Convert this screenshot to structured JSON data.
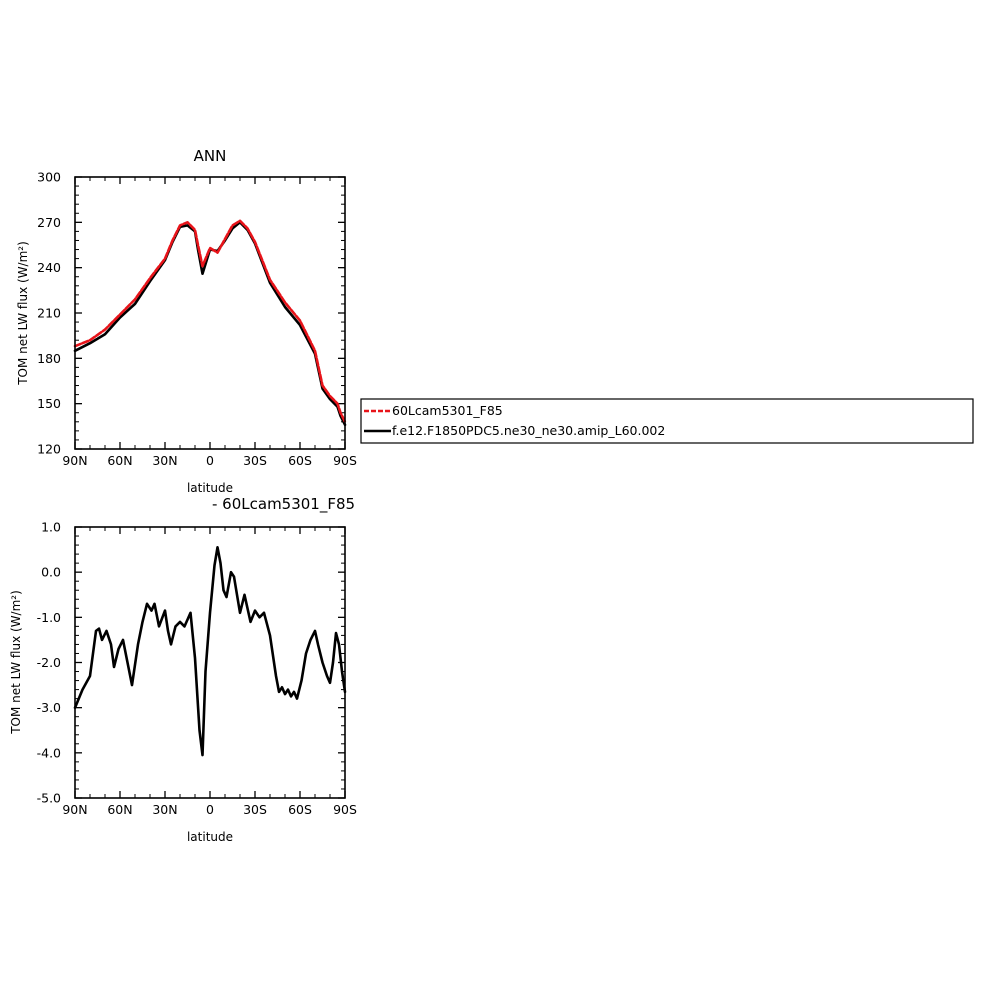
{
  "chart_data": [
    {
      "type": "line",
      "title": "ANN",
      "xlabel": "latitude",
      "ylabel": "TOM net LW flux (W/m²)",
      "xlim": [
        -90,
        90
      ],
      "ylim": [
        120,
        300
      ],
      "x_axis_direction": "90N on left, 90S on right",
      "xticks": [
        {
          "value": -90,
          "label": "90N"
        },
        {
          "value": -60,
          "label": "60N"
        },
        {
          "value": -30,
          "label": "30N"
        },
        {
          "value": 0,
          "label": "0"
        },
        {
          "value": 30,
          "label": "30S"
        },
        {
          "value": 60,
          "label": "60S"
        },
        {
          "value": 90,
          "label": "90S"
        }
      ],
      "yticks": [
        {
          "value": 120,
          "label": "120"
        },
        {
          "value": 150,
          "label": "150"
        },
        {
          "value": 180,
          "label": "180"
        },
        {
          "value": 210,
          "label": "210"
        },
        {
          "value": 240,
          "label": "240"
        },
        {
          "value": 270,
          "label": "270"
        },
        {
          "value": 300,
          "label": "300"
        }
      ],
      "x": [
        -90,
        -80,
        -70,
        -60,
        -50,
        -40,
        -30,
        -25,
        -20,
        -15,
        -10,
        -8,
        -5,
        0,
        5,
        10,
        15,
        20,
        25,
        30,
        40,
        50,
        60,
        70,
        75,
        80,
        83,
        85,
        87,
        90
      ],
      "series": [
        {
          "name": "60Lcam5301_F85",
          "color": "#e8141a",
          "dashed": true,
          "values": [
            188,
            192,
            199,
            209,
            219,
            233,
            246,
            258,
            268,
            270,
            265,
            255,
            241,
            253,
            250,
            259,
            268,
            271,
            266,
            257,
            232,
            217,
            205,
            185,
            162,
            155,
            152,
            150,
            144,
            138
          ]
        },
        {
          "name": "f.e12.F1850PDC5.ne30_ne30.amip_L60.002",
          "color": "#000000",
          "dashed": false,
          "values": [
            185,
            190,
            196,
            207,
            216,
            231,
            245,
            257,
            267,
            268,
            264,
            252,
            236,
            252,
            251,
            258,
            266,
            270,
            265,
            256,
            230,
            214,
            202,
            183,
            160,
            153,
            150,
            148,
            142,
            136
          ]
        }
      ],
      "legend": {
        "entries": [
          {
            "label": "60Lcam5301_F85",
            "color": "#e8141a",
            "dashed": true
          },
          {
            "label": "f.e12.F1850PDC5.ne30_ne30.amip_L60.002",
            "color": "#000000",
            "dashed": false
          }
        ],
        "placement": "right"
      }
    },
    {
      "type": "line",
      "title": "- 60Lcam5301_F85",
      "xlabel": "latitude",
      "ylabel": "TOM net LW flux (W/m²)",
      "xlim": [
        -90,
        90
      ],
      "ylim": [
        -5.0,
        1.0
      ],
      "xticks": [
        {
          "value": -90,
          "label": "90N"
        },
        {
          "value": -60,
          "label": "60N"
        },
        {
          "value": -30,
          "label": "30N"
        },
        {
          "value": 0,
          "label": "0"
        },
        {
          "value": 30,
          "label": "30S"
        },
        {
          "value": 60,
          "label": "60S"
        },
        {
          "value": 90,
          "label": "90S"
        }
      ],
      "yticks": [
        {
          "value": -5.0,
          "label": "-5.0"
        },
        {
          "value": -4.0,
          "label": "-4.0"
        },
        {
          "value": -3.0,
          "label": "-3.0"
        },
        {
          "value": -2.0,
          "label": "-2.0"
        },
        {
          "value": -1.0,
          "label": "-1.0"
        },
        {
          "value": 0.0,
          "label": "0.0"
        },
        {
          "value": 1.0,
          "label": "1.0"
        }
      ],
      "x": [
        -90,
        -85,
        -80,
        -76,
        -74,
        -72,
        -69,
        -66,
        -64,
        -61,
        -58,
        -55,
        -52,
        -48,
        -45,
        -42,
        -39,
        -37,
        -34,
        -30,
        -28,
        -26,
        -23,
        -20,
        -17,
        -15,
        -13,
        -10,
        -7,
        -5,
        -3,
        0,
        3,
        5,
        7,
        9,
        11,
        14,
        16,
        18,
        20,
        23,
        27,
        30,
        33,
        36,
        40,
        44,
        46,
        48,
        50,
        52,
        54,
        56,
        58,
        61,
        64,
        67,
        70,
        72,
        75,
        78,
        80,
        82,
        84,
        86,
        88,
        90
      ],
      "series": [
        {
          "name": "",
          "color": "#000000",
          "values": [
            -3.0,
            -2.6,
            -2.3,
            -1.3,
            -1.25,
            -1.5,
            -1.3,
            -1.6,
            -2.1,
            -1.7,
            -1.5,
            -2.0,
            -2.5,
            -1.6,
            -1.1,
            -0.7,
            -0.85,
            -0.7,
            -1.2,
            -0.85,
            -1.3,
            -1.6,
            -1.2,
            -1.1,
            -1.2,
            -1.05,
            -0.9,
            -1.9,
            -3.5,
            -4.05,
            -2.2,
            -0.9,
            0.15,
            0.55,
            0.2,
            -0.4,
            -0.55,
            0.0,
            -0.1,
            -0.5,
            -0.9,
            -0.5,
            -1.1,
            -0.85,
            -1.0,
            -0.9,
            -1.4,
            -2.3,
            -2.65,
            -2.55,
            -2.7,
            -2.6,
            -2.75,
            -2.65,
            -2.8,
            -2.4,
            -1.8,
            -1.5,
            -1.3,
            -1.6,
            -2.0,
            -2.3,
            -2.45,
            -2.0,
            -1.35,
            -1.6,
            -2.2,
            -2.65
          ]
        }
      ]
    }
  ]
}
